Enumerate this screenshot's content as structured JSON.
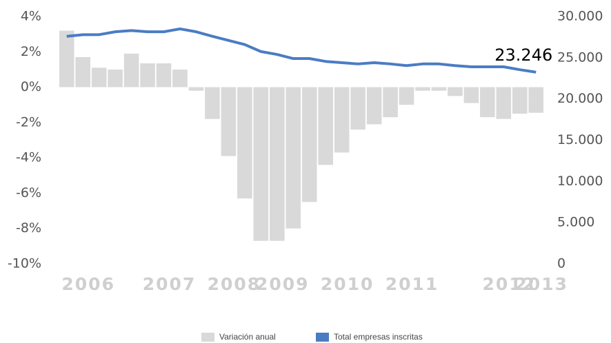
{
  "chart_data": {
    "type": "combo",
    "categories": [
      null,
      "2006",
      null,
      null,
      null,
      null,
      "2007",
      null,
      null,
      null,
      "2008",
      null,
      null,
      "2009",
      null,
      null,
      null,
      "2010",
      null,
      null,
      null,
      "2011",
      null,
      null,
      null,
      null,
      null,
      "2012",
      null,
      "2013"
    ],
    "series": [
      {
        "name": "Variación anual",
        "type": "bar",
        "axis": "y",
        "color": "#d9d9d9",
        "values": [
          3.2,
          1.7,
          1.1,
          1.0,
          1.9,
          1.35,
          1.35,
          1.0,
          -0.2,
          -1.8,
          -3.9,
          -6.3,
          -8.7,
          -8.7,
          -8.0,
          -6.5,
          -4.4,
          -3.7,
          -2.4,
          -2.1,
          -1.7,
          -1.0,
          -0.2,
          -0.2,
          -0.5,
          -0.9,
          -1.7,
          -1.8,
          -1.5,
          -1.45
        ]
      },
      {
        "name": "Total empresas inscritas",
        "type": "line",
        "axis": "y2",
        "color": "#4a7cc4",
        "values": [
          27600,
          27800,
          27800,
          28150,
          28300,
          28150,
          28150,
          28500,
          28150,
          27600,
          27100,
          26600,
          25750,
          25400,
          24900,
          24900,
          24550,
          24400,
          24250,
          24400,
          24250,
          24050,
          24250,
          24250,
          24050,
          23900,
          23900,
          23900,
          23550,
          23246
        ],
        "value_labels": [
          null,
          null,
          null,
          null,
          null,
          null,
          null,
          null,
          null,
          null,
          null,
          null,
          null,
          null,
          null,
          null,
          null,
          null,
          null,
          null,
          null,
          null,
          null,
          null,
          null,
          null,
          null,
          null,
          null,
          "23.246"
        ]
      }
    ],
    "ylim": [
      -10,
      4
    ],
    "yticks": [
      {
        "value": -10,
        "label": "-10%"
      },
      {
        "value": -8,
        "label": "-8%"
      },
      {
        "value": -6,
        "label": "-6%"
      },
      {
        "value": -4,
        "label": "-4%"
      },
      {
        "value": -2,
        "label": "-2%"
      },
      {
        "value": 0,
        "label": "0%"
      },
      {
        "value": 2,
        "label": "2%"
      },
      {
        "value": 4,
        "label": "4%"
      }
    ],
    "y2lim": [
      0,
      30000
    ],
    "y2ticks": [
      0,
      {
        "value": 5000,
        "label": "5.000"
      },
      {
        "value": 10000,
        "label": "10.000"
      },
      {
        "value": 15000,
        "label": "15.000"
      },
      {
        "value": 20000,
        "label": "20.000"
      },
      {
        "value": 25000,
        "label": "25.000"
      },
      {
        "value": 30000,
        "label": "30.000"
      }
    ],
    "grid": false,
    "legend": "bottom"
  }
}
